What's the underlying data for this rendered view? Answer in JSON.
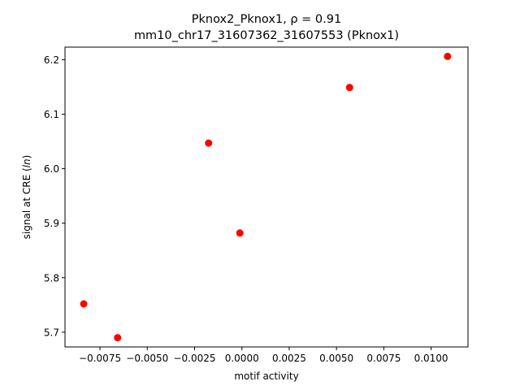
{
  "chart_data": {
    "type": "scatter",
    "title_line1": "Pknox2_Pknox1, ρ = 0.91",
    "title_line2": "mm10_chr17_31607362_31607553 (Pknox1)",
    "xlabel": "motif activity",
    "ylabel_prefix": "signal at CRE (",
    "ylabel_italic": "ln",
    "ylabel_suffix": ")",
    "xlim": [
      -0.00935,
      0.01195
    ],
    "ylim": [
      5.673,
      6.223
    ],
    "xticks": [
      -0.0075,
      -0.005,
      -0.0025,
      0.0,
      0.0025,
      0.005,
      0.0075,
      0.01
    ],
    "xtick_labels": [
      "−0.0075",
      "−0.0050",
      "−0.0025",
      "0.0000",
      "0.0025",
      "0.0050",
      "0.0075",
      "0.0100"
    ],
    "yticks": [
      5.7,
      5.8,
      5.9,
      6.0,
      6.1,
      6.2
    ],
    "ytick_labels": [
      "5.7",
      "5.8",
      "5.9",
      "6.0",
      "6.1",
      "6.2"
    ],
    "points": [
      {
        "x": -0.00836,
        "y": 5.752
      },
      {
        "x": -0.00657,
        "y": 5.69
      },
      {
        "x": -0.00176,
        "y": 6.047
      },
      {
        "x": -0.00011,
        "y": 5.882
      },
      {
        "x": 0.00569,
        "y": 6.149
      },
      {
        "x": 0.01087,
        "y": 6.206
      }
    ],
    "marker_color": "#ff0000",
    "grid": false,
    "legend": "none"
  }
}
